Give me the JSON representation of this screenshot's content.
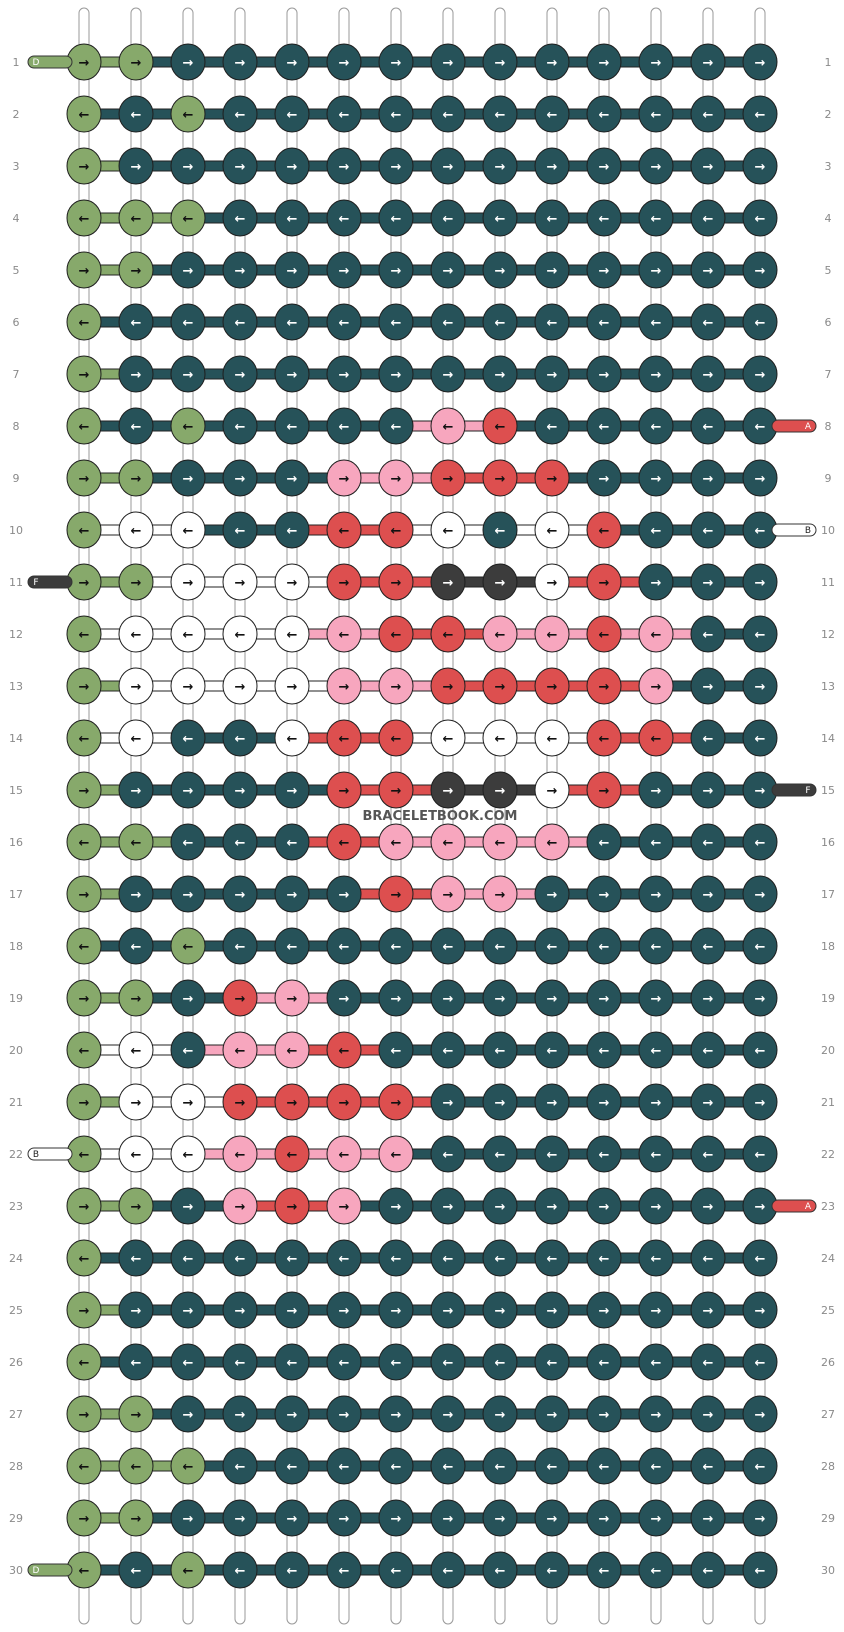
{
  "watermark": "BRACELETBOOK.COM",
  "row_labels": [
    "1",
    "2",
    "3",
    "4",
    "5",
    "6",
    "7",
    "8",
    "9",
    "10",
    "11",
    "12",
    "13",
    "14",
    "15",
    "16",
    "17",
    "18",
    "19",
    "20",
    "21",
    "22",
    "23",
    "24",
    "25",
    "26",
    "27",
    "28",
    "29",
    "30"
  ],
  "colors": {
    "G": "#87a96b",
    "T": "#265259",
    "W": "#ffffff",
    "K": "#3c3c3c",
    "R": "#dd4f4f",
    "P": "#f7a6be"
  },
  "palette_legend": {
    "D": "G",
    "A": "R",
    "B": "W",
    "F": "K"
  },
  "knots": [
    "GGTTTTTTTTTTTT",
    "GTGTTTTTTTTTTT",
    "GTTTTTTTTTTTTT",
    "GGGTTTTTTTTTTT",
    "GGTTTTTTTTTTTT",
    "GTTTTTTTTTTTTT",
    "GTTTTTTTTTTTTT",
    "GTGTTTTPRTTTTT",
    "GGTTTPPRRRTTTT",
    "GWWTTRRWTWRTTT",
    "GGWWWRRKKWRTTT",
    "GWWWWPRRPPRPTT",
    "GWWWWPPRRRRPTT",
    "GWTTWRRWWWRRTT",
    "GTTTTRRKKWRTTT",
    "GGTTTRPPPPTTTT",
    "GTTTTTRPPTTTTT",
    "GTGTTTTTTTTTTT",
    "GGTRPTTTTTTTTT",
    "GWTPPRTTTTTTTT",
    "GWWRRRRTTTTTTT",
    "GWWPRPPTTTTTTT",
    "GGTPRPTTTTTTTT",
    "GTTTTTTTTTTTTT",
    "GTTTTTTTTTTTTT",
    "GTTTTTTTTTTTTT",
    "GGTTTTTTTTTTTT",
    "GGGTTTTTTTTTTT",
    "GGTTTTTTTTTTTT",
    "GTGTTTTTTTTTTT"
  ],
  "arrows": [
    ">>>>>>>>>>>>>>",
    "<<<<<<<<<<<<<<",
    ">>>>>>>>>>>>>>",
    "<<<<<<<<<<<<<<",
    ">>>>>>>>>>>>>>",
    "<<<<<<<<<<<<<<",
    ">>>>>>>>>>>>>>",
    "<<<<<<<<<<<<<<",
    ">>>>>>>>>>>>>>",
    "<<<<<<<<<<<<<<",
    ">>>>>>>>>>>>>>",
    "<<<<<<<<<<<<<<",
    ">>>>>>>>>>>>>>",
    "<<<<<<<<<<<<<<",
    ">>>>>>>>>>>>>>",
    "<<<<<<<<<<<<<<",
    ">>>>>>>>>>>>>>",
    "<<<<<<<<<<<<<<",
    ">>>>>>>>>>>>>>",
    "<<<<<<<<<<<<<<",
    ">>>>>>>>>>>>>>",
    "<<<<<<<<<<<<<<",
    ">>>>>>>>>>>>>>",
    "<<<<<<<<<<<<<<",
    ">>>>>>>>>>>>>>",
    "<<<<<<<<<<<<<<",
    ">>>>>>>>>>>>>>",
    "<<<<<<<<<<<<<<",
    ">>>>>>>>>>>>>>",
    "<<<<<<<<<<<<<<"
  ],
  "string_ends": [
    {
      "row": 1,
      "side": "left",
      "letter": "D",
      "color": "G"
    },
    {
      "row": 30,
      "side": "left",
      "letter": "D",
      "color": "G"
    },
    {
      "row": 8,
      "side": "right",
      "letter": "A",
      "color": "R"
    },
    {
      "row": 23,
      "side": "right",
      "letter": "A",
      "color": "R"
    },
    {
      "row": 10,
      "side": "right",
      "letter": "B",
      "color": "W"
    },
    {
      "row": 22,
      "side": "left",
      "letter": "B",
      "color": "W"
    },
    {
      "row": 11,
      "side": "left",
      "letter": "F",
      "color": "K"
    },
    {
      "row": 15,
      "side": "right",
      "letter": "F",
      "color": "K"
    }
  ]
}
